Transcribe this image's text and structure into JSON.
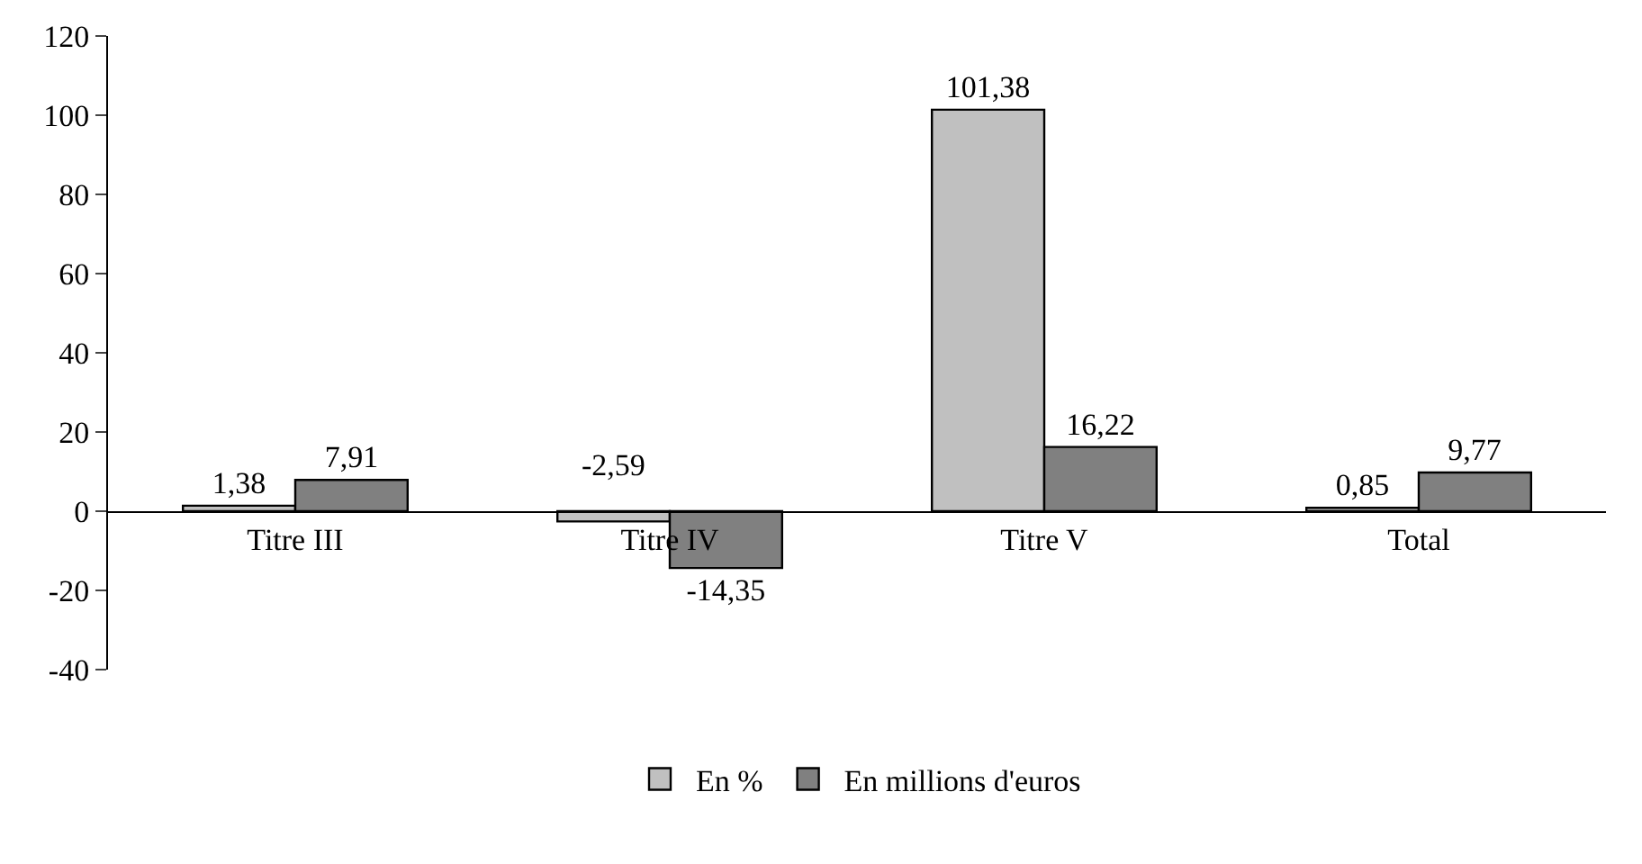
{
  "chart_data": {
    "type": "bar",
    "categories": [
      "Titre III",
      "Titre IV",
      "Titre V",
      "Total"
    ],
    "series": [
      {
        "name": "En %",
        "color": "#c0c0c0",
        "values": [
          1.38,
          -2.59,
          101.38,
          0.85
        ],
        "value_labels": [
          "1,38",
          "-2,59",
          "101,38",
          "0,85"
        ]
      },
      {
        "name": "En millions d'euros",
        "color": "#808080",
        "values": [
          7.91,
          -14.35,
          16.22,
          9.77
        ],
        "value_labels": [
          "7,91",
          "-14,35",
          "16,22",
          "9,77"
        ]
      }
    ],
    "ylim": [
      -40,
      120
    ],
    "yticks": [
      -40,
      -20,
      0,
      20,
      40,
      60,
      80,
      100,
      120
    ],
    "legend": "bottom"
  }
}
